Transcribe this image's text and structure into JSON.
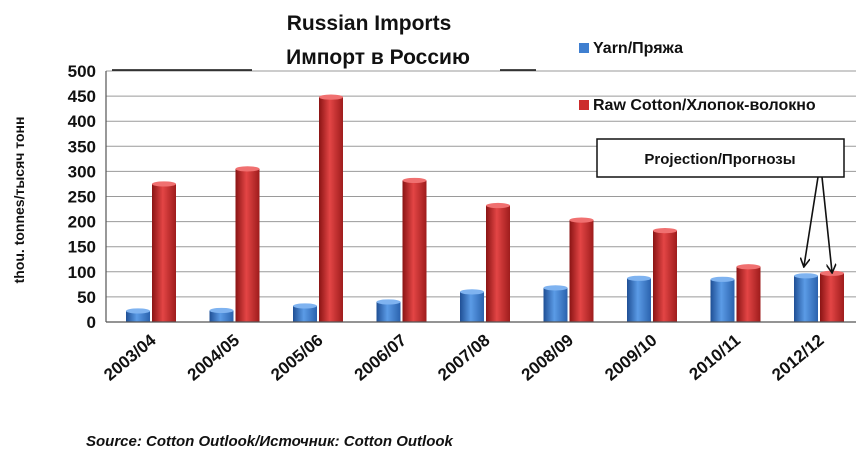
{
  "chart_data": {
    "type": "bar",
    "title": "Russian Imports",
    "subtitle": "Импорт в Россию",
    "ylabel": "thou. tonnes/тысяч тонн",
    "xlabel": "",
    "ylim": [
      0,
      500
    ],
    "yticks": [
      0,
      50,
      100,
      150,
      200,
      250,
      300,
      350,
      400,
      450,
      500
    ],
    "grid": true,
    "legend_position": "top-right",
    "categories": [
      "2003/04",
      "2004/05",
      "2005/06",
      "2006/07",
      "2007/08",
      "2008/09",
      "2009/10",
      "2010/11",
      "2012/12"
    ],
    "series": [
      {
        "name": "Yarn/Пряжа",
        "color": "#3f7fd0",
        "values": [
          22,
          23,
          32,
          40,
          60,
          68,
          87,
          85,
          92
        ]
      },
      {
        "name": "Raw Cotton/Хлопок-волокно",
        "color": "#cc2c2c",
        "values": [
          275,
          305,
          448,
          282,
          232,
          203,
          182,
          110,
          97
        ]
      }
    ],
    "annotation": "Projection/Прогнозы",
    "source": "Source: Cotton Outlook/Источник: Cotton Outlook"
  }
}
